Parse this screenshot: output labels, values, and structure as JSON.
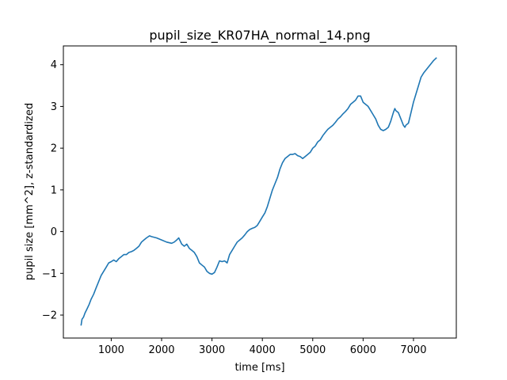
{
  "chart_data": {
    "type": "line",
    "title": "pupil_size_KR07HA_normal_14.png",
    "xlabel": "time [ms]",
    "ylabel": "pupil size [mm^2], z-standardized",
    "xlim": [
      50,
      7850
    ],
    "ylim": [
      -2.55,
      4.45
    ],
    "xticks": [
      1000,
      2000,
      3000,
      4000,
      5000,
      6000,
      7000
    ],
    "xtick_labels": [
      "1000",
      "2000",
      "3000",
      "4000",
      "5000",
      "6000",
      "7000"
    ],
    "yticks": [
      -2,
      -1,
      0,
      1,
      2,
      3,
      4
    ],
    "ytick_labels": [
      "−2",
      "−1",
      "0",
      "1",
      "2",
      "3",
      "4"
    ],
    "grid": false,
    "series": [
      {
        "name": "pupil size",
        "color": "#1f77b4",
        "x": [
          400,
          420,
          450,
          480,
          520,
          560,
          600,
          650,
          700,
          750,
          800,
          850,
          900,
          950,
          1000,
          1050,
          1100,
          1150,
          1200,
          1250,
          1300,
          1350,
          1400,
          1450,
          1500,
          1550,
          1600,
          1650,
          1700,
          1760,
          1800,
          1900,
          2000,
          2100,
          2200,
          2250,
          2300,
          2340,
          2400,
          2450,
          2500,
          2550,
          2600,
          2650,
          2700,
          2750,
          2800,
          2850,
          2900,
          2950,
          3000,
          3050,
          3100,
          3150,
          3200,
          3250,
          3300,
          3350,
          3400,
          3450,
          3500,
          3550,
          3600,
          3650,
          3700,
          3750,
          3800,
          3850,
          3900,
          3950,
          4000,
          4050,
          4100,
          4150,
          4200,
          4250,
          4300,
          4350,
          4400,
          4450,
          4500,
          4550,
          4600,
          4650,
          4700,
          4750,
          4800,
          4850,
          4900,
          4950,
          5000,
          5050,
          5100,
          5150,
          5200,
          5250,
          5300,
          5350,
          5400,
          5450,
          5500,
          5550,
          5600,
          5650,
          5700,
          5750,
          5800,
          5850,
          5900,
          5950,
          6000,
          6050,
          6100,
          6150,
          6200,
          6250,
          6300,
          6350,
          6400,
          6450,
          6500,
          6550,
          6600,
          6630,
          6650,
          6700,
          6750,
          6800,
          6830,
          6850,
          6900,
          6950,
          7000,
          7050,
          7100,
          7150,
          7200,
          7300,
          7400,
          7460
        ],
        "y": [
          -2.25,
          -2.1,
          -2.05,
          -1.95,
          -1.85,
          -1.75,
          -1.62,
          -1.5,
          -1.35,
          -1.2,
          -1.05,
          -0.95,
          -0.85,
          -0.75,
          -0.72,
          -0.68,
          -0.72,
          -0.65,
          -0.6,
          -0.55,
          -0.55,
          -0.5,
          -0.48,
          -0.45,
          -0.4,
          -0.35,
          -0.25,
          -0.2,
          -0.15,
          -0.1,
          -0.12,
          -0.15,
          -0.2,
          -0.25,
          -0.28,
          -0.25,
          -0.2,
          -0.15,
          -0.3,
          -0.35,
          -0.3,
          -0.4,
          -0.45,
          -0.5,
          -0.6,
          -0.75,
          -0.8,
          -0.85,
          -0.95,
          -1.0,
          -1.02,
          -0.98,
          -0.85,
          -0.7,
          -0.72,
          -0.7,
          -0.75,
          -0.55,
          -0.45,
          -0.35,
          -0.25,
          -0.2,
          -0.15,
          -0.08,
          0.0,
          0.05,
          0.08,
          0.1,
          0.15,
          0.25,
          0.35,
          0.45,
          0.6,
          0.8,
          1.0,
          1.15,
          1.3,
          1.5,
          1.65,
          1.75,
          1.8,
          1.85,
          1.85,
          1.87,
          1.82,
          1.8,
          1.75,
          1.8,
          1.85,
          1.9,
          2.0,
          2.05,
          2.15,
          2.2,
          2.3,
          2.38,
          2.45,
          2.5,
          2.55,
          2.62,
          2.7,
          2.75,
          2.82,
          2.88,
          2.95,
          3.05,
          3.1,
          3.15,
          3.25,
          3.25,
          3.1,
          3.05,
          3.0,
          2.9,
          2.8,
          2.7,
          2.55,
          2.45,
          2.42,
          2.45,
          2.5,
          2.65,
          2.85,
          2.95,
          2.9,
          2.85,
          2.7,
          2.55,
          2.5,
          2.55,
          2.6,
          2.85,
          3.1,
          3.3,
          3.5,
          3.7,
          3.8,
          3.95,
          4.1,
          4.17
        ]
      }
    ]
  }
}
